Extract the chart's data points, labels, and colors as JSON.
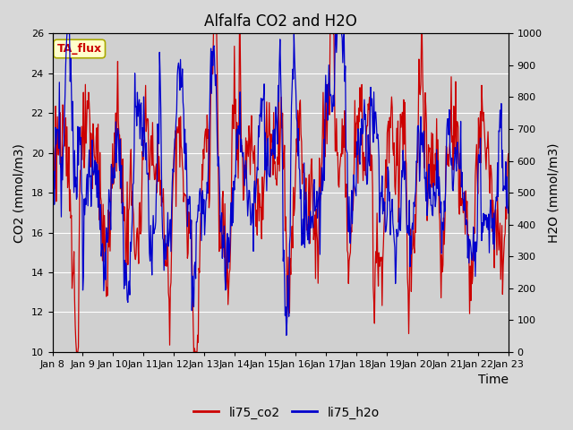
{
  "title": "Alfalfa CO2 and H2O",
  "xlabel": "Time",
  "ylabel_left": "CO2 (mmol/m3)",
  "ylabel_right": "H2O (mmol/m3)",
  "ylim_left": [
    10,
    26
  ],
  "ylim_right": [
    0,
    1000
  ],
  "yticks_left": [
    10,
    12,
    14,
    16,
    18,
    20,
    22,
    24,
    26
  ],
  "yticks_right": [
    0,
    100,
    200,
    300,
    400,
    500,
    600,
    700,
    800,
    900,
    1000
  ],
  "xtick_labels": [
    "Jan 8",
    "Jan 9",
    "Jan 10",
    "Jan 11",
    "Jan 12",
    "Jan 13",
    "Jan 14",
    "Jan 15",
    "Jan 16",
    "Jan 17",
    "Jan 18",
    "Jan 19",
    "Jan 20",
    "Jan 21",
    "Jan 22",
    "Jan 23"
  ],
  "n_days": 15,
  "background_color": "#d8d8d8",
  "plot_bg_color": "#d0d0d0",
  "grid_color": "#ffffff",
  "co2_color": "#cc0000",
  "h2o_color": "#0000cc",
  "legend_label_co2": "li75_co2",
  "legend_label_h2o": "li75_h2o",
  "annotation_text": "TA_flux",
  "annotation_color": "#cc0000",
  "annotation_bg": "#ffffcc",
  "annotation_edge": "#aaaa00",
  "title_fontsize": 12,
  "axis_label_fontsize": 10,
  "tick_fontsize": 8,
  "legend_fontsize": 10
}
